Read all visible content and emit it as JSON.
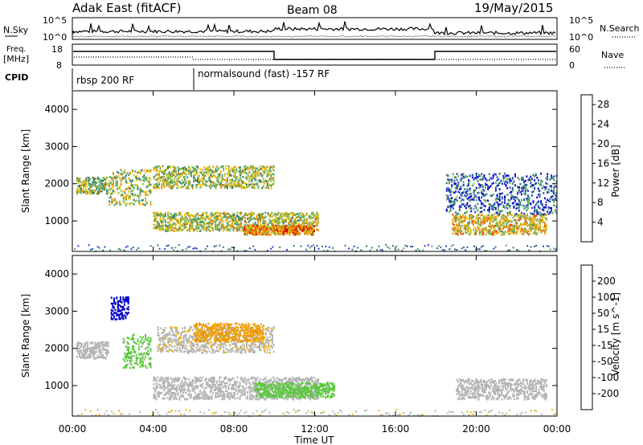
{
  "header": {
    "station": "Adak East (fitACF)",
    "beam": "Beam 08",
    "date": "19/May/2015"
  },
  "top_panels": {
    "nsky_label": "N.Sky",
    "nsearch_label": "N.Search",
    "freq_label_line1": "Freq.",
    "freq_label_line2": "[MHz]",
    "nave_label": "Nave",
    "cpid_label": "CPID",
    "noise_ticks_left": [
      "10^5",
      "10^0"
    ],
    "noise_ticks_right": [
      "10^5",
      "10^0"
    ],
    "freq_ticks": [
      "18",
      "8"
    ],
    "nave_ticks": [
      "60",
      "0"
    ],
    "cpid_programs": [
      {
        "label": "rbsp 200 RF",
        "start_hour": 0
      },
      {
        "label": "normalsound (fast) -157 RF",
        "start_hour": 6
      }
    ]
  },
  "chart_data": [
    {
      "type": "heatmap",
      "title": "Power",
      "xlabel": "Time UT",
      "ylabel": "Slant Range [km]",
      "x_ticks": [
        "00:00",
        "04:00",
        "08:00",
        "12:00",
        "16:00",
        "20:00",
        "00:00"
      ],
      "x_range_hours": [
        0,
        24
      ],
      "y_ticks": [
        "1000",
        "2000",
        "3000",
        "4000"
      ],
      "y_range_km": [
        180,
        4500
      ],
      "colorbar": {
        "label": "Power [dB]",
        "ticks": [
          "4",
          "8",
          "12",
          "16",
          "20",
          "24",
          "28"
        ],
        "range": [
          0,
          30
        ]
      },
      "echo_regions": [
        {
          "t": [
            0.2,
            1.8
          ],
          "r": [
            1750,
            2200
          ],
          "value": 14
        },
        {
          "t": [
            1.8,
            3.9
          ],
          "r": [
            1450,
            2400
          ],
          "value": 15
        },
        {
          "t": [
            4.0,
            10.0
          ],
          "r": [
            1900,
            2500
          ],
          "value": 15
        },
        {
          "t": [
            4.0,
            12.2
          ],
          "r": [
            750,
            1250
          ],
          "value": 16
        },
        {
          "t": [
            8.5,
            12.0
          ],
          "r": [
            650,
            900
          ],
          "value": 22
        },
        {
          "t": [
            18.8,
            23.5
          ],
          "r": [
            650,
            1200
          ],
          "value": 18
        },
        {
          "t": [
            18.5,
            24.0
          ],
          "r": [
            1200,
            2300
          ],
          "value": 7
        }
      ]
    },
    {
      "type": "heatmap",
      "title": "Velocity",
      "xlabel": "Time UT",
      "ylabel": "Slant Range [km]",
      "x_ticks": [
        "00:00",
        "04:00",
        "08:00",
        "12:00",
        "16:00",
        "20:00",
        "00:00"
      ],
      "x_range_hours": [
        0,
        24
      ],
      "y_ticks": [
        "1000",
        "2000",
        "3000",
        "4000"
      ],
      "y_range_km": [
        180,
        4500
      ],
      "colorbar": {
        "label": "Velocity [m s^-1]",
        "ticks": [
          "200",
          "100",
          "50",
          "15",
          "-15",
          "-50",
          "-100",
          "-200"
        ],
        "range": [
          -250,
          250
        ]
      },
      "echo_regions": [
        {
          "t": [
            0.2,
            1.8
          ],
          "r": [
            1750,
            2200
          ],
          "value": 0
        },
        {
          "t": [
            1.9,
            2.8
          ],
          "r": [
            2800,
            3400
          ],
          "value": 220
        },
        {
          "t": [
            2.5,
            3.9
          ],
          "r": [
            1500,
            2400
          ],
          "value": 45
        },
        {
          "t": [
            4.2,
            10.0
          ],
          "r": [
            1900,
            2600
          ],
          "value": -5
        },
        {
          "t": [
            6.0,
            9.5
          ],
          "r": [
            2200,
            2700
          ],
          "value": -40
        },
        {
          "t": [
            4.0,
            12.2
          ],
          "r": [
            650,
            1250
          ],
          "value": 5
        },
        {
          "t": [
            9.0,
            13.0
          ],
          "r": [
            700,
            1100
          ],
          "value": 45
        },
        {
          "t": [
            19.0,
            23.5
          ],
          "r": [
            650,
            1200
          ],
          "value": 2
        }
      ]
    }
  ],
  "colors": {
    "power_scale": [
      "#0000c8",
      "#2a3fd0",
      "#2d7a6e",
      "#5aa06e",
      "#8cbf4a",
      "#f0c000",
      "#f08c00",
      "#e85000",
      "#d00000"
    ],
    "velocity_scale": [
      "#d00000",
      "#f05a00",
      "#f09a00",
      "#b4b4b4",
      "#b4b4b4",
      "#5ac83c",
      "#2d8c50",
      "#0000c8"
    ],
    "noise_line": "#000000",
    "frequency_line": "#000000"
  }
}
